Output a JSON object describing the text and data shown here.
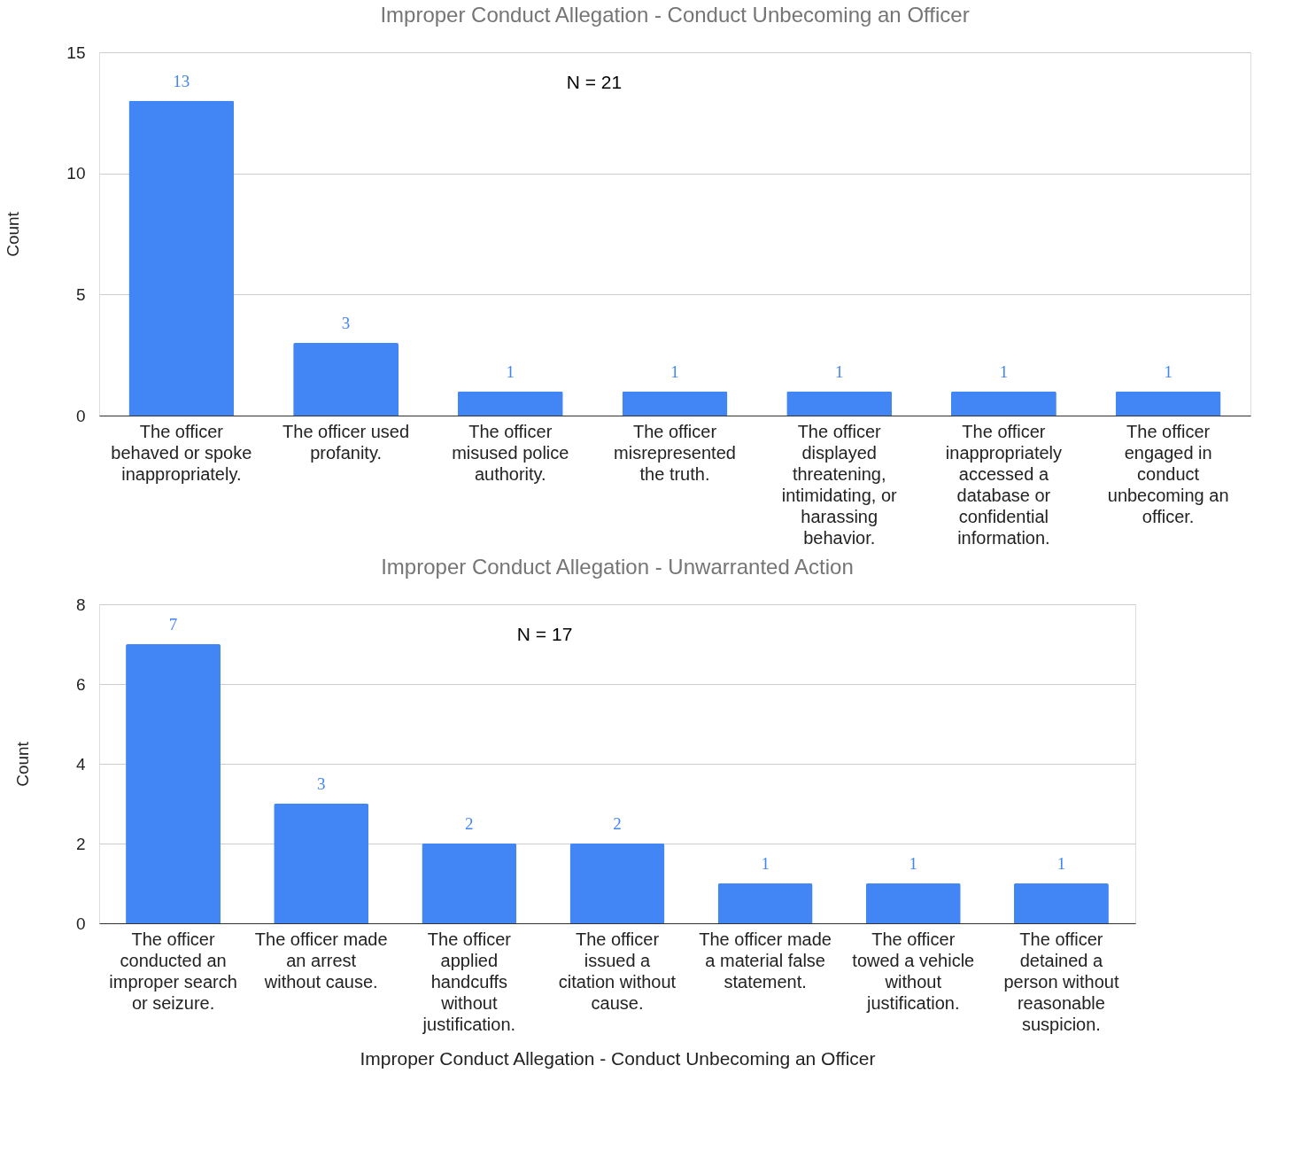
{
  "chart_data": [
    {
      "type": "bar",
      "title": "Improper Conduct Allegation  - Conduct Unbecoming an Officer",
      "ylabel": "Count",
      "categories": [
        "The officer behaved or spoke inappropriately.",
        "The officer used profanity.",
        "The officer misused police authority.",
        "The officer misrepresented the truth.",
        "The officer displayed threatening, intimidating, or harassing behavior.",
        "The officer inappropriately accessed a database or confidential information.",
        "The officer engaged in conduct unbecoming an officer."
      ],
      "values": [
        13,
        3,
        1,
        1,
        1,
        1,
        1
      ],
      "color": "#4285f4",
      "ylim": [
        0,
        15
      ],
      "yticks": [
        0,
        5,
        10,
        15
      ],
      "grid": "y",
      "data_labels": true,
      "annotations": [
        "N = 21"
      ]
    },
    {
      "type": "bar",
      "title": "Improper Conduct Allegation - Unwarranted Action",
      "ylabel": "Count",
      "xlabel": "Improper Conduct Allegation - Conduct Unbecoming an Officer",
      "categories": [
        "The officer conducted an improper search or seizure.",
        "The officer made an arrest without cause.",
        "The officer applied handcuffs without justification.",
        "The officer issued a citation without cause.",
        "The officer made a material false statement.",
        "The officer towed a vehicle without justification.",
        "The officer detained a person without reasonable suspicion."
      ],
      "values": [
        7,
        3,
        2,
        2,
        1,
        1,
        1
      ],
      "color": "#4285f4",
      "ylim": [
        0,
        8
      ],
      "yticks": [
        0,
        2,
        4,
        6,
        8
      ],
      "grid": "y",
      "data_labels": true,
      "annotations": [
        "N = 17"
      ]
    }
  ]
}
